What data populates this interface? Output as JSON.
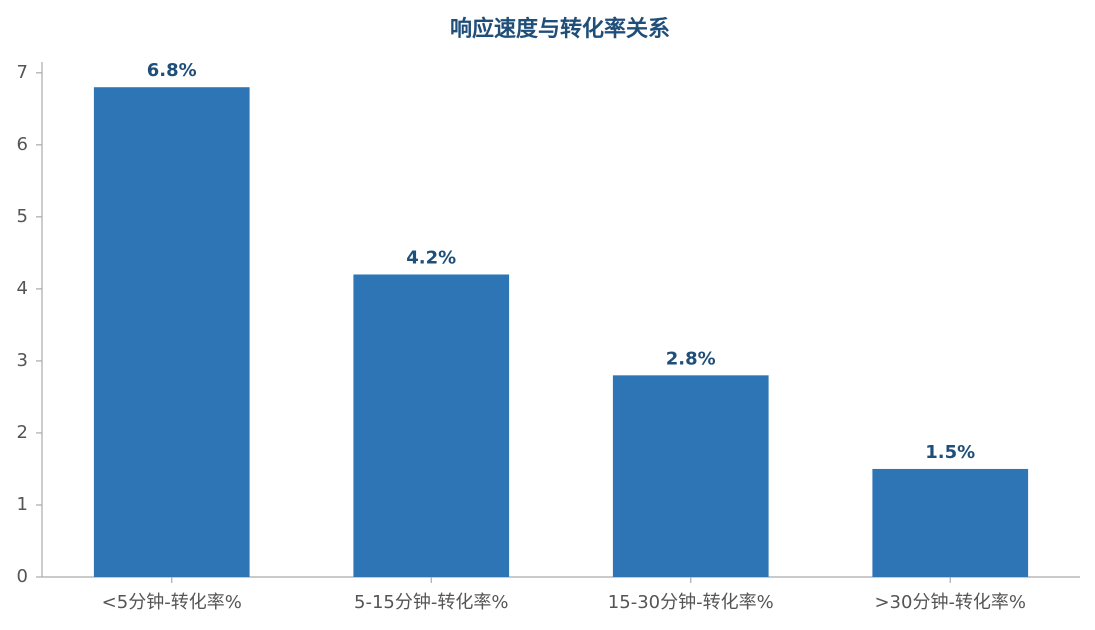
{
  "chart_data": {
    "type": "bar",
    "title": "响应速度与转化率关系",
    "categories": [
      "<5分钟-转化率%",
      "5-15分钟-转化率%",
      "15-30分钟-转化率%",
      ">30分钟-转化率%"
    ],
    "values": [
      6.8,
      4.2,
      2.8,
      1.5
    ],
    "value_labels": [
      "6.8%",
      "4.2%",
      "2.8%",
      "1.5%"
    ],
    "color": "#2e75b6",
    "ylim": [
      0,
      7.15
    ],
    "yticks": [
      0,
      1,
      2,
      3,
      4,
      5,
      6,
      7
    ],
    "grid": false
  }
}
